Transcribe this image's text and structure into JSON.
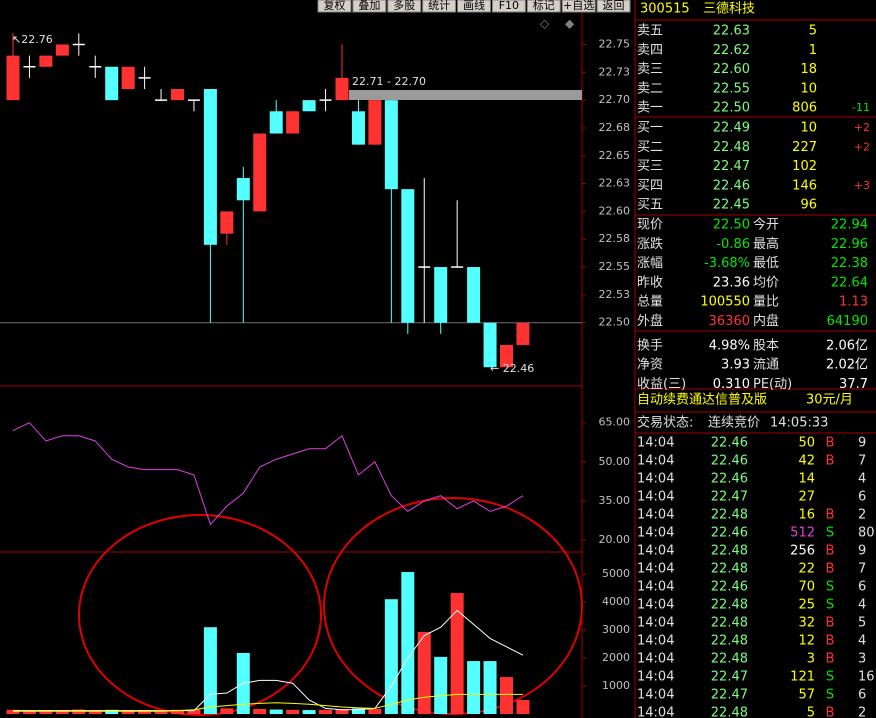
{
  "toolbar": [
    "复权",
    "叠加",
    "多股",
    "统计",
    "画线",
    "F10",
    "标记",
    "+自选",
    "返回"
  ],
  "stock": {
    "code": "300515",
    "name": "三德科技"
  },
  "order_book": {
    "asks": [
      {
        "label": "卖五",
        "price": "22.63",
        "volume": "5"
      },
      {
        "label": "卖四",
        "price": "22.62",
        "volume": "1"
      },
      {
        "label": "卖三",
        "price": "22.60",
        "volume": "18"
      },
      {
        "label": "卖二",
        "price": "22.55",
        "volume": "10"
      },
      {
        "label": "卖一",
        "price": "22.50",
        "volume": "806",
        "change": "-11",
        "color": "#00e600"
      }
    ],
    "bids": [
      {
        "label": "买一",
        "price": "22.49",
        "volume": "10",
        "change": "+2",
        "color": "#ff3232"
      },
      {
        "label": "买二",
        "price": "22.48",
        "volume": "227",
        "change": "+2",
        "color": "#ff3232"
      },
      {
        "label": "买三",
        "price": "22.47",
        "volume": "102"
      },
      {
        "label": "买四",
        "price": "22.46",
        "volume": "146",
        "change": "+3",
        "color": "#ff3232"
      },
      {
        "label": "买五",
        "price": "22.45",
        "volume": "96"
      }
    ]
  },
  "stats": [
    [
      {
        "label": "现价",
        "value": "22.50",
        "color": "#00e600"
      },
      {
        "label": "今开",
        "value": "22.94",
        "color": "#00e600"
      }
    ],
    [
      {
        "label": "涨跌",
        "value": "-0.86",
        "color": "#00e600"
      },
      {
        "label": "最高",
        "value": "22.96",
        "color": "#00e600"
      }
    ],
    [
      {
        "label": "涨幅",
        "value": "-3.68%",
        "color": "#00e600"
      },
      {
        "label": "最低",
        "value": "22.38",
        "color": "#00e600"
      }
    ],
    [
      {
        "label": "昨收",
        "value": "23.36",
        "color": "#ffffff"
      },
      {
        "label": "均价",
        "value": "22.64",
        "color": "#00e600"
      }
    ],
    [
      {
        "label": "总量",
        "value": "100550",
        "color": "#ffff00"
      },
      {
        "label": "量比",
        "value": "1.13",
        "color": "#ff3232"
      }
    ],
    [
      {
        "label": "外盘",
        "value": "36360",
        "color": "#ff3232"
      },
      {
        "label": "内盘",
        "value": "64190",
        "color": "#00e600"
      }
    ],
    [
      {
        "label": "换手",
        "value": "4.98%",
        "color": "#ffffff"
      },
      {
        "label": "股本",
        "value": "2.06亿",
        "color": "#ffffff"
      }
    ],
    [
      {
        "label": "净资",
        "value": "3.93",
        "color": "#ffffff"
      },
      {
        "label": "流通",
        "value": "2.02亿",
        "color": "#ffffff"
      }
    ],
    [
      {
        "label": "收益(三)",
        "value": "0.310",
        "color": "#ffffff"
      },
      {
        "label": "PE(动)",
        "value": "37.7",
        "color": "#ffffff"
      }
    ]
  ],
  "banner": {
    "text": "自动续费通达信普及版",
    "price": "30元/月"
  },
  "status": {
    "label": "交易状态:",
    "value": "连续竞价",
    "time": "14:05:33"
  },
  "trades": [
    {
      "time": "14:04",
      "price": "22.46",
      "volume": "50",
      "side": "B",
      "count": "9"
    },
    {
      "time": "14:04",
      "price": "22.46",
      "volume": "42",
      "side": "B",
      "count": "7"
    },
    {
      "time": "14:04",
      "price": "22.46",
      "volume": "14",
      "count": "4"
    },
    {
      "time": "14:04",
      "price": "22.47",
      "volume": "27",
      "count": "6"
    },
    {
      "time": "14:04",
      "price": "22.48",
      "volume": "16",
      "side": "B",
      "count": "2"
    },
    {
      "time": "14:04",
      "price": "22.46",
      "volume": "512",
      "side": "S",
      "count": "80",
      "color": "#e040e0"
    },
    {
      "time": "14:04",
      "price": "22.48",
      "volume": "256",
      "side": "B",
      "count": "9",
      "color": "#ffffff"
    },
    {
      "time": "14:04",
      "price": "22.48",
      "volume": "22",
      "side": "B",
      "count": "7"
    },
    {
      "time": "14:04",
      "price": "22.46",
      "volume": "70",
      "side": "S",
      "count": "6"
    },
    {
      "time": "14:04",
      "price": "22.48",
      "volume": "25",
      "side": "S",
      "count": "4"
    },
    {
      "time": "14:04",
      "price": "22.48",
      "volume": "32",
      "side": "B",
      "count": "5"
    },
    {
      "time": "14:04",
      "price": "22.48",
      "volume": "12",
      "side": "B",
      "count": "4"
    },
    {
      "time": "14:04",
      "price": "22.48",
      "volume": "3",
      "side": "B",
      "count": "3"
    },
    {
      "time": "14:04",
      "price": "22.47",
      "volume": "121",
      "side": "S",
      "count": "16"
    },
    {
      "time": "14:04",
      "price": "22.47",
      "volume": "57",
      "side": "S",
      "count": "6"
    },
    {
      "time": "14:04",
      "price": "22.48",
      "volume": "5",
      "side": "B",
      "count": "2"
    }
  ],
  "chart_data": [
    {
      "type": "candlestick",
      "ylim": [
        22.444,
        22.79
      ],
      "yticks": [
        {
          "value": 22.5,
          "label": "22.50"
        },
        {
          "value": 22.525,
          "label": "22.53"
        },
        {
          "value": 22.55,
          "label": "22.55"
        },
        {
          "value": 22.575,
          "label": "22.58"
        },
        {
          "value": 22.6,
          "label": "22.60"
        },
        {
          "value": 22.625,
          "label": "22.63"
        },
        {
          "value": 22.65,
          "label": "22.65"
        },
        {
          "value": 22.675,
          "label": "22.68"
        },
        {
          "value": 22.7,
          "label": "22.70"
        },
        {
          "value": 22.725,
          "label": "22.73"
        },
        {
          "value": 22.75,
          "label": "22.75"
        }
      ],
      "up_color": "#ff3232",
      "down_color": "#54ffff",
      "annotations": {
        "high": "↖22.76",
        "low": "← 22.46",
        "range": "22.71 - 22.70"
      },
      "candles": [
        {
          "o": 22.7,
          "h": 22.76,
          "l": 22.7,
          "c": 22.74
        },
        {
          "o": 22.73,
          "h": 22.74,
          "l": 22.72,
          "c": 22.73
        },
        {
          "o": 22.73,
          "h": 22.74,
          "l": 22.73,
          "c": 22.74
        },
        {
          "o": 22.74,
          "h": 22.75,
          "l": 22.74,
          "c": 22.75
        },
        {
          "o": 22.75,
          "h": 22.76,
          "l": 22.74,
          "c": 22.75
        },
        {
          "o": 22.73,
          "h": 22.74,
          "l": 22.72,
          "c": 22.73
        },
        {
          "o": 22.73,
          "h": 22.73,
          "l": 22.7,
          "c": 22.7
        },
        {
          "o": 22.71,
          "h": 22.73,
          "l": 22.71,
          "c": 22.73
        },
        {
          "o": 22.72,
          "h": 22.73,
          "l": 22.71,
          "c": 22.72
        },
        {
          "o": 22.7,
          "h": 22.71,
          "l": 22.7,
          "c": 22.7
        },
        {
          "o": 22.7,
          "h": 22.71,
          "l": 22.7,
          "c": 22.71
        },
        {
          "o": 22.7,
          "h": 22.7,
          "l": 22.69,
          "c": 22.7
        },
        {
          "o": 22.71,
          "h": 22.71,
          "l": 22.5,
          "c": 22.57
        },
        {
          "o": 22.58,
          "h": 22.6,
          "l": 22.57,
          "c": 22.6
        },
        {
          "o": 22.63,
          "h": 22.64,
          "l": 22.5,
          "c": 22.61
        },
        {
          "o": 22.6,
          "h": 22.67,
          "l": 22.6,
          "c": 22.67
        },
        {
          "o": 22.69,
          "h": 22.7,
          "l": 22.67,
          "c": 22.67
        },
        {
          "o": 22.67,
          "h": 22.69,
          "l": 22.67,
          "c": 22.69
        },
        {
          "o": 22.7,
          "h": 22.7,
          "l": 22.69,
          "c": 22.69
        },
        {
          "o": 22.7,
          "h": 22.71,
          "l": 22.69,
          "c": 22.7
        },
        {
          "o": 22.7,
          "h": 22.75,
          "l": 22.7,
          "c": 22.72
        },
        {
          "o": 22.69,
          "h": 22.7,
          "l": 22.66,
          "c": 22.66
        },
        {
          "o": 22.66,
          "h": 22.7,
          "l": 22.66,
          "c": 22.7
        },
        {
          "o": 22.7,
          "h": 22.7,
          "l": 22.5,
          "c": 22.62
        },
        {
          "o": 22.62,
          "h": 22.62,
          "l": 22.49,
          "c": 22.5
        },
        {
          "o": 22.55,
          "h": 22.63,
          "l": 22.5,
          "c": 22.55
        },
        {
          "o": 22.55,
          "h": 22.55,
          "l": 22.49,
          "c": 22.5
        },
        {
          "o": 22.55,
          "h": 22.61,
          "l": 22.55,
          "c": 22.55
        },
        {
          "o": 22.55,
          "h": 22.55,
          "l": 22.5,
          "c": 22.5
        },
        {
          "o": 22.5,
          "h": 22.5,
          "l": 22.46,
          "c": 22.46
        },
        {
          "o": 22.46,
          "h": 22.48,
          "l": 22.46,
          "c": 22.48
        },
        {
          "o": 22.48,
          "h": 22.5,
          "l": 22.48,
          "c": 22.5
        }
      ]
    },
    {
      "type": "line",
      "ylim": [
        15.8,
        78.7
      ],
      "color": "#e040e0",
      "yticks": [
        {
          "value": 20,
          "label": "20.00"
        },
        {
          "value": 35,
          "label": "35.00"
        },
        {
          "value": 50,
          "label": "50.00"
        },
        {
          "value": 65,
          "label": "65.00"
        }
      ],
      "values": [
        62,
        65,
        58,
        60,
        60,
        58,
        51,
        48,
        47,
        47,
        47,
        45,
        26,
        33,
        38,
        48,
        51,
        53,
        55,
        55,
        60,
        45,
        50,
        37,
        31,
        35,
        37,
        32,
        35,
        31,
        33,
        37
      ]
    },
    {
      "type": "bar",
      "ylim": [
        0,
        5750
      ],
      "yticks": [
        1000,
        2000,
        3000,
        4000,
        5000
      ],
      "values": [
        150,
        120,
        140,
        130,
        160,
        120,
        150,
        130,
        140,
        120,
        150,
        160,
        3100,
        200,
        2180,
        180,
        160,
        150,
        140,
        150,
        170,
        200,
        180,
        4100,
        5070,
        2930,
        2040,
        4320,
        1890,
        1890,
        1320,
        500
      ],
      "series": [
        {
          "color": "#ffffff",
          "values": [
            120,
            120,
            120,
            120,
            120,
            120,
            120,
            120,
            120,
            120,
            120,
            120,
            700,
            750,
            1100,
            1200,
            1200,
            1100,
            500,
            200,
            150,
            150,
            200,
            1000,
            2000,
            2800,
            3100,
            3700,
            3200,
            2700,
            2400,
            2100
          ]
        },
        {
          "color": "#ffff00",
          "values": [
            100,
            100,
            100,
            100,
            100,
            100,
            100,
            100,
            100,
            100,
            120,
            150,
            250,
            300,
            350,
            380,
            400,
            380,
            350,
            300,
            250,
            220,
            200,
            350,
            500,
            600,
            650,
            700,
            700,
            700,
            700,
            700
          ]
        }
      ]
    }
  ]
}
